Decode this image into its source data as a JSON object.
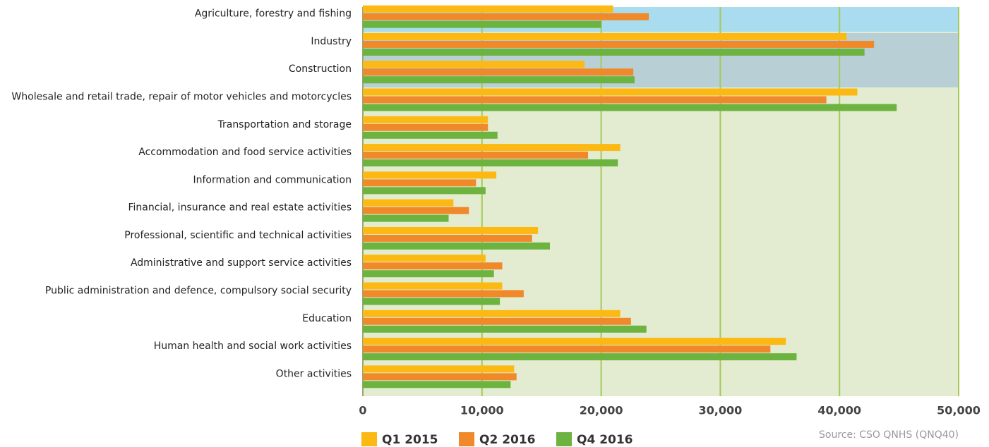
{
  "chart_data": {
    "type": "bar",
    "orientation": "horizontal",
    "categories": [
      "Agriculture, forestry and fishing",
      "Industry",
      "Construction",
      "Wholesale and retail trade, repair of motor vehicles and motorcycles",
      "Transportation and storage",
      "Accommodation and food service activities",
      "Information and communication",
      "Financial, insurance and real estate activities",
      "Professional, scientific and technical activities",
      "Administrative and support service activities",
      "Public administration and defence, compulsory social security",
      "Education",
      "Human health and social work activities",
      "Other activities"
    ],
    "series": [
      {
        "name": "Q1 2015",
        "color": "#fdb913",
        "values": [
          21000,
          40600,
          18600,
          41500,
          10500,
          21600,
          11200,
          7600,
          14700,
          10300,
          11700,
          21600,
          35500,
          12700
        ]
      },
      {
        "name": "Q2 2016",
        "color": "#f0892a",
        "values": [
          24000,
          42900,
          22700,
          38900,
          10500,
          18900,
          9500,
          8900,
          14200,
          11700,
          13500,
          22500,
          34200,
          12900
        ]
      },
      {
        "name": "Q4 2016",
        "color": "#6cb33f",
        "values": [
          20000,
          42100,
          22800,
          44800,
          11300,
          21400,
          10300,
          7200,
          15700,
          11000,
          11500,
          23800,
          36400,
          12400
        ]
      }
    ],
    "xlim": [
      0,
      50000
    ],
    "xticks": [
      0,
      {
        "value": 10000,
        "label": "10,000"
      },
      {
        "value": 20000,
        "label": "20,000"
      },
      {
        "value": 30000,
        "label": "30,000"
      },
      {
        "value": 40000,
        "label": "40,000"
      },
      {
        "value": 50000,
        "label": "50,000"
      }
    ],
    "grid": true,
    "source": "Source: CSO QNHS (QNQ40)"
  }
}
